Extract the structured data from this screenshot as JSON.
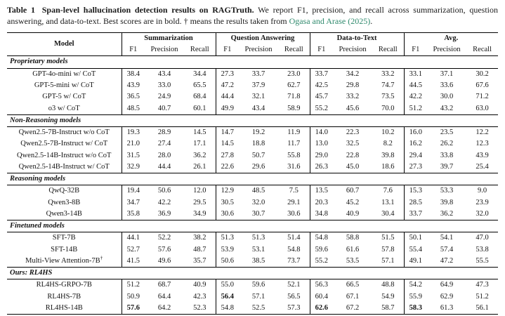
{
  "caption": {
    "label": "Table 1",
    "title": "Span-level hallucination detection results on RAGTruth.",
    "body": "We report F1, precision, and recall across summarization, question answering, and data-to-text. Best scores are in bold. † means the results taken from",
    "link_text": "Ogasa and Arase (2025)",
    "after_link": "."
  },
  "theme": {
    "link_color": "#2f8a6d",
    "rule_color": "#000000",
    "text_color": "#141414"
  },
  "table": {
    "model_header": "Model",
    "groups": [
      {
        "label": "Summarization"
      },
      {
        "label": "Question Answering"
      },
      {
        "label": "Data-to-Text"
      },
      {
        "label": "Avg."
      }
    ],
    "metrics": [
      "F1",
      "Precision",
      "Recall"
    ],
    "sections": [
      {
        "title": "Proprietary models",
        "rows": [
          {
            "model": "GPT-4o-mini w/ CoT",
            "values": [
              "38.4",
              "43.4",
              "34.4",
              "27.3",
              "33.7",
              "23.0",
              "33.7",
              "34.2",
              "33.2",
              "33.1",
              "37.1",
              "30.2"
            ],
            "bold": []
          },
          {
            "model": "GPT-5-mini w/ CoT",
            "values": [
              "43.9",
              "33.0",
              "65.5",
              "47.2",
              "37.9",
              "62.7",
              "42.5",
              "29.8",
              "74.7",
              "44.5",
              "33.6",
              "67.6"
            ],
            "bold": []
          },
          {
            "model": "GPT-5 w/ CoT",
            "values": [
              "36.5",
              "24.9",
              "68.4",
              "44.4",
              "32.1",
              "71.8",
              "45.7",
              "33.2",
              "73.5",
              "42.2",
              "30.0",
              "71.2"
            ],
            "bold": []
          },
          {
            "model": "o3 w/ CoT",
            "values": [
              "48.5",
              "40.7",
              "60.1",
              "49.9",
              "43.4",
              "58.9",
              "55.2",
              "45.6",
              "70.0",
              "51.2",
              "43.2",
              "63.0"
            ],
            "bold": []
          }
        ]
      },
      {
        "title": "Non-Reasoning models",
        "rows": [
          {
            "model": "Qwen2.5-7B-Instruct w/o CoT",
            "values": [
              "19.3",
              "28.9",
              "14.5",
              "14.7",
              "19.2",
              "11.9",
              "14.0",
              "22.3",
              "10.2",
              "16.0",
              "23.5",
              "12.2"
            ],
            "bold": []
          },
          {
            "model": "Qwen2.5-7B-Instruct w/ CoT",
            "values": [
              "21.0",
              "27.4",
              "17.1",
              "14.5",
              "18.8",
              "11.7",
              "13.0",
              "32.5",
              "8.2",
              "16.2",
              "26.2",
              "12.3"
            ],
            "bold": []
          },
          {
            "model": "Qwen2.5-14B-Instruct w/o CoT",
            "values": [
              "31.5",
              "28.0",
              "36.2",
              "27.8",
              "50.7",
              "55.8",
              "29.0",
              "22.8",
              "39.8",
              "29.4",
              "33.8",
              "43.9"
            ],
            "bold": []
          },
          {
            "model": "Qwen2.5-14B-Instruct w/ CoT",
            "values": [
              "32.9",
              "44.4",
              "26.1",
              "22.6",
              "29.6",
              "31.6",
              "26.3",
              "45.0",
              "18.6",
              "27.3",
              "39.7",
              "25.4"
            ],
            "bold": []
          }
        ]
      },
      {
        "title": "Reasoning models",
        "rows": [
          {
            "model": "QwQ-32B",
            "values": [
              "19.4",
              "50.6",
              "12.0",
              "12.9",
              "48.5",
              "7.5",
              "13.5",
              "60.7",
              "7.6",
              "15.3",
              "53.3",
              "9.0"
            ],
            "bold": []
          },
          {
            "model": "Qwen3-8B",
            "values": [
              "34.7",
              "42.2",
              "29.5",
              "30.5",
              "32.0",
              "29.1",
              "20.3",
              "45.2",
              "13.1",
              "28.5",
              "39.8",
              "23.9"
            ],
            "bold": []
          },
          {
            "model": "Qwen3-14B",
            "values": [
              "35.8",
              "36.9",
              "34.9",
              "30.6",
              "30.7",
              "30.6",
              "34.8",
              "40.9",
              "30.4",
              "33.7",
              "36.2",
              "32.0"
            ],
            "bold": []
          }
        ]
      },
      {
        "title": "Finetuned models",
        "rows": [
          {
            "model": "SFT-7B",
            "values": [
              "44.1",
              "52.2",
              "38.2",
              "51.3",
              "51.3",
              "51.4",
              "54.8",
              "58.8",
              "51.5",
              "50.1",
              "54.1",
              "47.0"
            ],
            "bold": []
          },
          {
            "model": "SFT-14B",
            "values": [
              "52.7",
              "57.6",
              "48.7",
              "53.9",
              "53.1",
              "54.8",
              "59.6",
              "61.6",
              "57.8",
              "55.4",
              "57.4",
              "53.8"
            ],
            "bold": []
          },
          {
            "model": "Multi-View Attention-7B†",
            "values": [
              "41.5",
              "49.6",
              "35.7",
              "50.6",
              "38.5",
              "73.7",
              "55.2",
              "53.5",
              "57.1",
              "49.1",
              "47.2",
              "55.5"
            ],
            "bold": []
          }
        ]
      },
      {
        "title": "Ours: RL4HS",
        "rows": [
          {
            "model": "RL4HS-GRPO-7B",
            "values": [
              "51.2",
              "68.7",
              "40.9",
              "55.0",
              "59.6",
              "52.1",
              "56.3",
              "66.5",
              "48.8",
              "54.2",
              "64.9",
              "47.3"
            ],
            "bold": []
          },
          {
            "model": "RL4HS-7B",
            "values": [
              "50.9",
              "64.4",
              "42.3",
              "56.4",
              "57.1",
              "56.5",
              "60.4",
              "67.1",
              "54.9",
              "55.9",
              "62.9",
              "51.2"
            ],
            "bold": [
              3
            ]
          },
          {
            "model": "RL4HS-14B",
            "values": [
              "57.6",
              "64.2",
              "52.3",
              "54.8",
              "52.5",
              "57.3",
              "62.6",
              "67.2",
              "58.7",
              "58.3",
              "61.3",
              "56.1"
            ],
            "bold": [
              0,
              6,
              9
            ]
          }
        ]
      }
    ]
  }
}
